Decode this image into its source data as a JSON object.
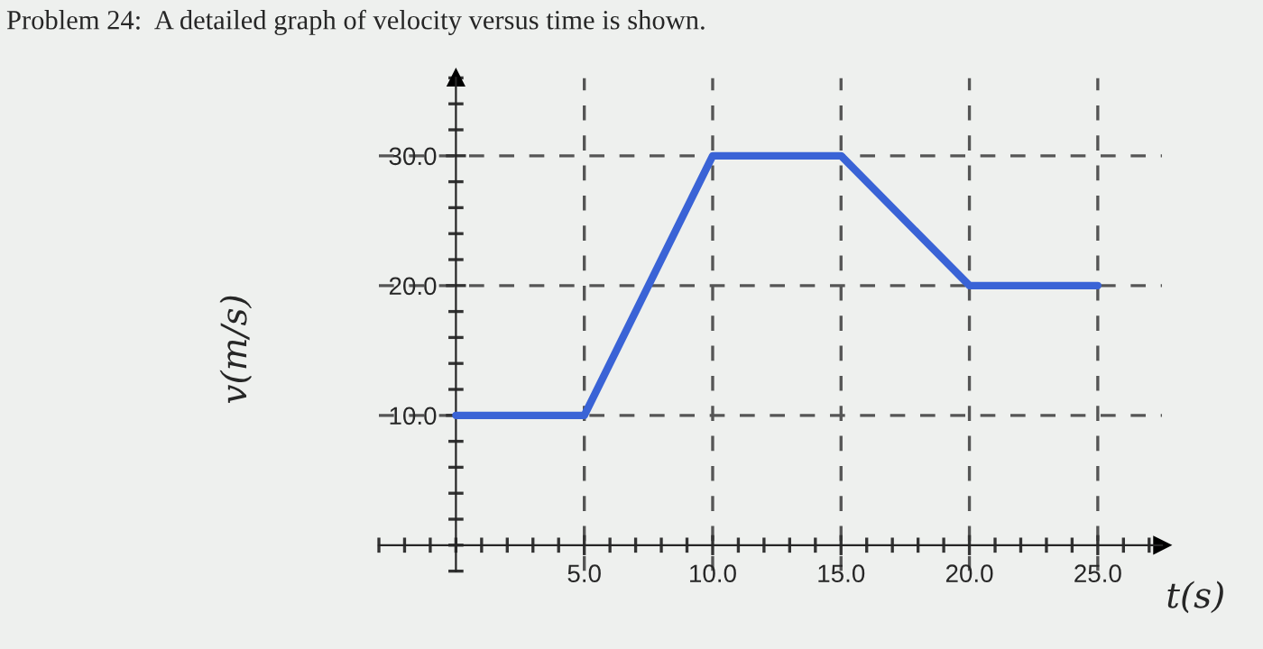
{
  "chart_data": {
    "type": "line",
    "title": "Problem 24:  A detailed graph of velocity versus time is shown.",
    "xlabel": "t(s)",
    "ylabel": "v(m/s)",
    "x": [
      0,
      5,
      10,
      15,
      20,
      25
    ],
    "series": [
      {
        "color": "#3a63d6",
        "values": [
          10,
          10,
          30,
          30,
          20,
          20
        ]
      }
    ],
    "xlim": [
      -3,
      27.5
    ],
    "ylim": [
      -2,
      36
    ],
    "xticks": [
      {
        "value": 5,
        "label": "5.0"
      },
      {
        "value": 10,
        "label": "10.0"
      },
      {
        "value": 15,
        "label": "15.0"
      },
      {
        "value": 20,
        "label": "20.0"
      },
      {
        "value": 25,
        "label": "25.0"
      }
    ],
    "yticks": [
      {
        "value": 10,
        "label": "10.0"
      },
      {
        "value": 20,
        "label": "20.0"
      },
      {
        "value": 30,
        "label": "30.0"
      }
    ],
    "grid": true,
    "marker": "none",
    "line_style": "solid"
  }
}
